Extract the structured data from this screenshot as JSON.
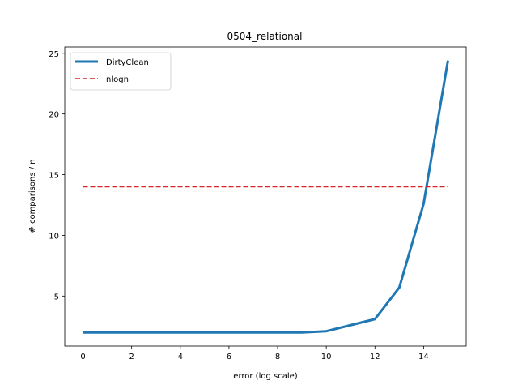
{
  "chart_data": {
    "type": "line",
    "title": "0504_relational",
    "xlabel": "error (log scale)",
    "ylabel": "# comparisons / n",
    "xlim": [
      -0.75,
      15.75
    ],
    "ylim": [
      0.88,
      25.52
    ],
    "xticks": [
      0,
      2,
      4,
      6,
      8,
      10,
      12,
      14
    ],
    "yticks": [
      5,
      10,
      15,
      20,
      25
    ],
    "grid": false,
    "legend_position": "top-left",
    "series": [
      {
        "name": "DirtyClean",
        "style": "solid",
        "color": "#1f77b4",
        "x": [
          0,
          1,
          2,
          3,
          4,
          5,
          6,
          7,
          8,
          9,
          10,
          11,
          12,
          13,
          14,
          15
        ],
        "y": [
          2.0,
          2.0,
          2.0,
          2.0,
          2.0,
          2.0,
          2.0,
          2.0,
          2.0,
          2.0,
          2.1,
          2.6,
          3.1,
          5.7,
          12.6,
          24.4
        ]
      },
      {
        "name": "nlogn",
        "style": "dashed",
        "color": "#d62728",
        "x": [
          0,
          15
        ],
        "y": [
          14.0,
          14.0
        ]
      }
    ]
  }
}
